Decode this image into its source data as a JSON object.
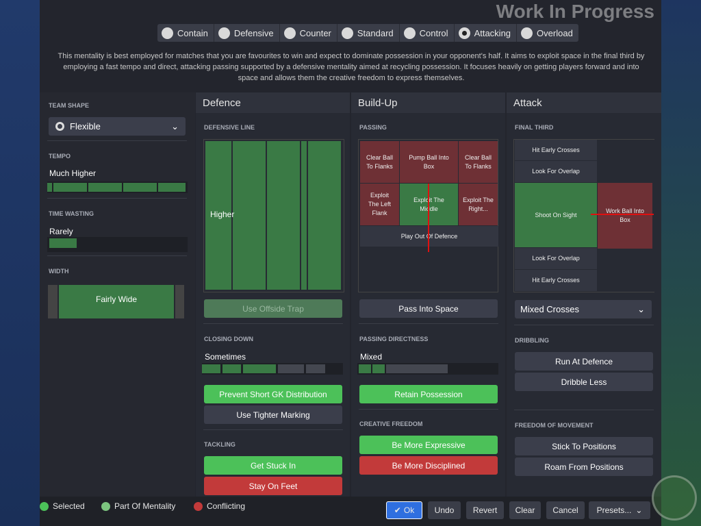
{
  "mentalities": [
    {
      "label": "Contain",
      "selected": false
    },
    {
      "label": "Defensive",
      "selected": false
    },
    {
      "label": "Counter",
      "selected": false
    },
    {
      "label": "Standard",
      "selected": false
    },
    {
      "label": "Control",
      "selected": false
    },
    {
      "label": "Attacking",
      "selected": true
    },
    {
      "label": "Overload",
      "selected": false
    }
  ],
  "description": "This mentality is best employed for matches that you are favourites to win and expect to dominate possession in your opponent's half. It aims to exploit space in the final third by employing a fast tempo and direct, attacking passing supported by a defensive mentality aimed at recycling possession. It focuses heavily on getting players forward and into space and allows them the creative freedom to express themselves.",
  "left": {
    "team_shape_label": "TEAM SHAPE",
    "team_shape": "Flexible",
    "tempo_label": "TEMPO",
    "tempo": "Much Higher",
    "tempo_level": 1.0,
    "time_wasting_label": "TIME WASTING",
    "time_wasting": "Rarely",
    "time_wasting_level": 0.2,
    "width_label": "WIDTH",
    "width": "Fairly Wide"
  },
  "defence": {
    "title": "Defence",
    "line_label": "DEFENSIVE LINE",
    "line": "Higher",
    "offside": "Use Offside Trap",
    "closing_label": "CLOSING DOWN",
    "closing": "Sometimes",
    "closing_level": 0.55,
    "gk": "Prevent Short GK Distribution",
    "marking": "Use Tighter Marking",
    "tackling_label": "TACKLING",
    "stuck_in": "Get Stuck In",
    "stay_feet": "Stay On Feet"
  },
  "buildup": {
    "title": "Build-Up",
    "passing_label": "PASSING",
    "cells": [
      "Clear Ball To Flanks",
      "Pump Ball Into Box",
      "Clear Ball To Flanks",
      "Exploit The Left Flank",
      "Exploit The Middle",
      "Exploit The Right...",
      "Play Out Of Defence"
    ],
    "space": "Pass Into Space",
    "directness_label": "PASSING DIRECTNESS",
    "directness": "Mixed",
    "directness_level": 0.3,
    "retain": "Retain Possession",
    "creative_label": "CREATIVE FREEDOM",
    "expressive": "Be More Expressive",
    "disciplined": "Be More Disciplined"
  },
  "attack": {
    "title": "Attack",
    "final_label": "FINAL THIRD",
    "cells": [
      "Hit Early Crosses",
      "Look For Overlap",
      "Shoot On Sight",
      "Work Ball Into Box",
      "Look For Overlap",
      "Hit Early Crosses"
    ],
    "crosses": "Mixed Crosses",
    "dribbling_label": "DRIBBLING",
    "run": "Run At Defence",
    "dribble_less": "Dribble Less",
    "freedom_label": "FREEDOM OF MOVEMENT",
    "stick": "Stick To Positions",
    "roam": "Roam From Positions"
  },
  "legend": {
    "selected": "Selected",
    "part": "Part Of Mentality",
    "conflicting": "Conflicting"
  },
  "buttons": {
    "ok": "Ok",
    "undo": "Undo",
    "revert": "Revert",
    "clear": "Clear",
    "cancel": "Cancel",
    "presets": "Presets..."
  },
  "watermark": "Work In Progress",
  "colors": {
    "selected": "#4cc159",
    "part": "#7cc47f",
    "conflicting": "#c23a3a",
    "ok": "#2f6fe0"
  }
}
